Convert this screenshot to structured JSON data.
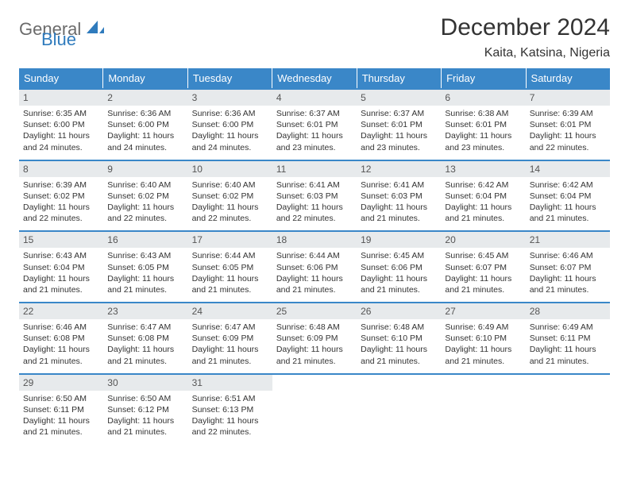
{
  "logo": {
    "text1": "General",
    "text2": "Blue",
    "sail_color": "#2f7bbd",
    "text1_color": "#6b6b6b"
  },
  "title": "December 2024",
  "location": "Kaita, Katsina, Nigeria",
  "colors": {
    "header_bg": "#3a87c8",
    "header_text": "#ffffff",
    "daynum_bg": "#e7eaec",
    "daynum_text": "#555555",
    "body_text": "#333333",
    "week_border": "#3a87c8"
  },
  "fonts": {
    "title_size": 30,
    "location_size": 16,
    "dow_size": 13,
    "daynum_size": 12,
    "body_size": 10.5
  },
  "days_of_week": [
    "Sunday",
    "Monday",
    "Tuesday",
    "Wednesday",
    "Thursday",
    "Friday",
    "Saturday"
  ],
  "weeks": [
    [
      {
        "n": "1",
        "sr": "6:35 AM",
        "ss": "6:00 PM",
        "dl": "11 hours and 24 minutes."
      },
      {
        "n": "2",
        "sr": "6:36 AM",
        "ss": "6:00 PM",
        "dl": "11 hours and 24 minutes."
      },
      {
        "n": "3",
        "sr": "6:36 AM",
        "ss": "6:00 PM",
        "dl": "11 hours and 24 minutes."
      },
      {
        "n": "4",
        "sr": "6:37 AM",
        "ss": "6:01 PM",
        "dl": "11 hours and 23 minutes."
      },
      {
        "n": "5",
        "sr": "6:37 AM",
        "ss": "6:01 PM",
        "dl": "11 hours and 23 minutes."
      },
      {
        "n": "6",
        "sr": "6:38 AM",
        "ss": "6:01 PM",
        "dl": "11 hours and 23 minutes."
      },
      {
        "n": "7",
        "sr": "6:39 AM",
        "ss": "6:01 PM",
        "dl": "11 hours and 22 minutes."
      }
    ],
    [
      {
        "n": "8",
        "sr": "6:39 AM",
        "ss": "6:02 PM",
        "dl": "11 hours and 22 minutes."
      },
      {
        "n": "9",
        "sr": "6:40 AM",
        "ss": "6:02 PM",
        "dl": "11 hours and 22 minutes."
      },
      {
        "n": "10",
        "sr": "6:40 AM",
        "ss": "6:02 PM",
        "dl": "11 hours and 22 minutes."
      },
      {
        "n": "11",
        "sr": "6:41 AM",
        "ss": "6:03 PM",
        "dl": "11 hours and 22 minutes."
      },
      {
        "n": "12",
        "sr": "6:41 AM",
        "ss": "6:03 PM",
        "dl": "11 hours and 21 minutes."
      },
      {
        "n": "13",
        "sr": "6:42 AM",
        "ss": "6:04 PM",
        "dl": "11 hours and 21 minutes."
      },
      {
        "n": "14",
        "sr": "6:42 AM",
        "ss": "6:04 PM",
        "dl": "11 hours and 21 minutes."
      }
    ],
    [
      {
        "n": "15",
        "sr": "6:43 AM",
        "ss": "6:04 PM",
        "dl": "11 hours and 21 minutes."
      },
      {
        "n": "16",
        "sr": "6:43 AM",
        "ss": "6:05 PM",
        "dl": "11 hours and 21 minutes."
      },
      {
        "n": "17",
        "sr": "6:44 AM",
        "ss": "6:05 PM",
        "dl": "11 hours and 21 minutes."
      },
      {
        "n": "18",
        "sr": "6:44 AM",
        "ss": "6:06 PM",
        "dl": "11 hours and 21 minutes."
      },
      {
        "n": "19",
        "sr": "6:45 AM",
        "ss": "6:06 PM",
        "dl": "11 hours and 21 minutes."
      },
      {
        "n": "20",
        "sr": "6:45 AM",
        "ss": "6:07 PM",
        "dl": "11 hours and 21 minutes."
      },
      {
        "n": "21",
        "sr": "6:46 AM",
        "ss": "6:07 PM",
        "dl": "11 hours and 21 minutes."
      }
    ],
    [
      {
        "n": "22",
        "sr": "6:46 AM",
        "ss": "6:08 PM",
        "dl": "11 hours and 21 minutes."
      },
      {
        "n": "23",
        "sr": "6:47 AM",
        "ss": "6:08 PM",
        "dl": "11 hours and 21 minutes."
      },
      {
        "n": "24",
        "sr": "6:47 AM",
        "ss": "6:09 PM",
        "dl": "11 hours and 21 minutes."
      },
      {
        "n": "25",
        "sr": "6:48 AM",
        "ss": "6:09 PM",
        "dl": "11 hours and 21 minutes."
      },
      {
        "n": "26",
        "sr": "6:48 AM",
        "ss": "6:10 PM",
        "dl": "11 hours and 21 minutes."
      },
      {
        "n": "27",
        "sr": "6:49 AM",
        "ss": "6:10 PM",
        "dl": "11 hours and 21 minutes."
      },
      {
        "n": "28",
        "sr": "6:49 AM",
        "ss": "6:11 PM",
        "dl": "11 hours and 21 minutes."
      }
    ],
    [
      {
        "n": "29",
        "sr": "6:50 AM",
        "ss": "6:11 PM",
        "dl": "11 hours and 21 minutes."
      },
      {
        "n": "30",
        "sr": "6:50 AM",
        "ss": "6:12 PM",
        "dl": "11 hours and 21 minutes."
      },
      {
        "n": "31",
        "sr": "6:51 AM",
        "ss": "6:13 PM",
        "dl": "11 hours and 22 minutes."
      },
      null,
      null,
      null,
      null
    ]
  ],
  "labels": {
    "sunrise": "Sunrise:",
    "sunset": "Sunset:",
    "daylight": "Daylight:"
  }
}
